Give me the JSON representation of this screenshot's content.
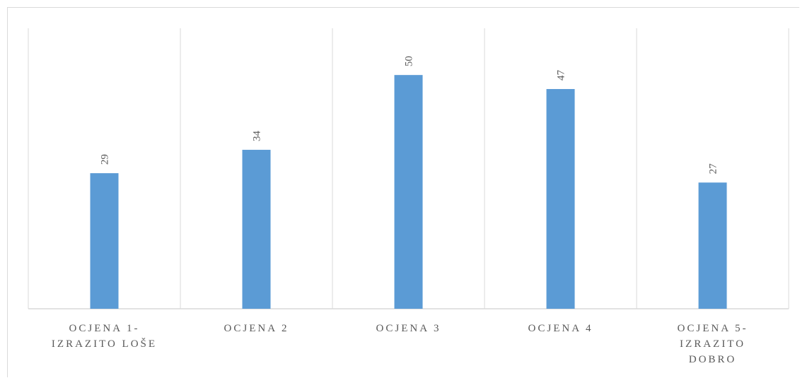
{
  "chart_data": {
    "type": "bar",
    "categories": [
      [
        "OCJENA 1-",
        "IZRAZITO LOŠE"
      ],
      [
        "OCJENA 2"
      ],
      [
        "OCJENA 3"
      ],
      [
        "OCJENA 4"
      ],
      [
        "OCJENA 5-",
        "IZRAZITO",
        "DOBRO"
      ]
    ],
    "values": [
      29,
      34,
      50,
      47,
      27
    ],
    "title": "",
    "xlabel": "",
    "ylabel": "",
    "ylim": [
      0,
      60
    ],
    "grid": "vertical separators",
    "legend": "none",
    "data_labels": "rotated above bars",
    "bar_color": "#5b9bd5",
    "grid_color": "#d9d9d9",
    "label_color": "#595959"
  }
}
